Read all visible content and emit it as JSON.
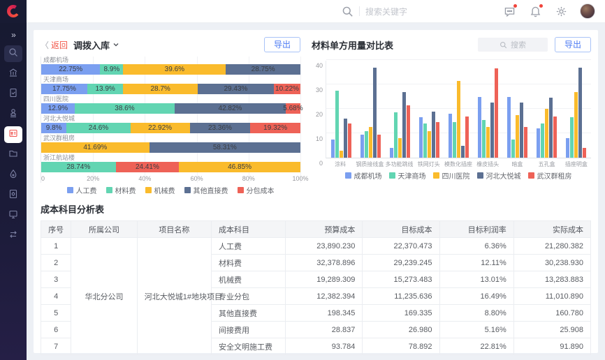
{
  "topbar": {
    "search_placeholder": "搜索关键字"
  },
  "sidebar": {
    "items": [
      {
        "name": "search",
        "style": "hl"
      },
      {
        "name": "bank",
        "style": ""
      },
      {
        "name": "document-check",
        "style": ""
      },
      {
        "name": "stamp",
        "style": ""
      },
      {
        "name": "id-card",
        "style": "active"
      },
      {
        "name": "folder",
        "style": ""
      },
      {
        "name": "droplet",
        "style": ""
      },
      {
        "name": "document-gear",
        "style": ""
      },
      {
        "name": "monitor",
        "style": ""
      },
      {
        "name": "transfer",
        "style": ""
      }
    ],
    "expand_glyph": "»"
  },
  "left_chart": {
    "back_chevron": "〈",
    "back_label": "返回",
    "title": "调拨入库",
    "export_label": "导出"
  },
  "right_chart": {
    "title": "材料单方用量对比表",
    "search_placeholder": "搜索",
    "export_label": "导出"
  },
  "colors": {
    "blue": "#7B9FF0",
    "green": "#62D5B2",
    "orange": "#FABB2C",
    "slate": "#5C7092",
    "red": "#EE6257",
    "accent_blue": "#4D7BF3",
    "accent_red": "#F25749"
  },
  "chart_data": [
    {
      "type": "bar",
      "orientation": "horizontal-stacked",
      "title": "调拨入库",
      "xlim": [
        0,
        100
      ],
      "x_ticks": [
        "0",
        "20%",
        "40%",
        "60%",
        "80%",
        "100%"
      ],
      "grid": true,
      "legend_position": "bottom",
      "legend": [
        {
          "label": "人工费",
          "color": "#7B9FF0"
        },
        {
          "label": "材料费",
          "color": "#62D5B2"
        },
        {
          "label": "机械费",
          "color": "#FABB2C"
        },
        {
          "label": "其他直接费",
          "color": "#5C7092"
        },
        {
          "label": "分包成本",
          "color": "#EE6257"
        }
      ],
      "bars": [
        {
          "category": "成都机场",
          "segments": [
            {
              "series": "人工费",
              "value": 22.75
            },
            {
              "series": "材料费",
              "value": 8.9
            },
            {
              "series": "机械费",
              "value": 39.6
            },
            {
              "series": "其他直接费",
              "value": 28.75
            }
          ]
        },
        {
          "category": "天津商场",
          "segments": [
            {
              "series": "人工费",
              "value": 17.75
            },
            {
              "series": "材料费",
              "value": 13.9
            },
            {
              "series": "机械费",
              "value": 28.7
            },
            {
              "series": "其他直接费",
              "value": 29.43
            },
            {
              "series": "分包成本",
              "value": 10.22
            }
          ]
        },
        {
          "category": "四川医院",
          "segments": [
            {
              "series": "人工费",
              "value": 12.9
            },
            {
              "series": "材料费",
              "value": 38.6
            },
            {
              "series": "其他直接费",
              "value": 42.82
            },
            {
              "series": "分包成本",
              "value": 5.68
            }
          ]
        },
        {
          "category": "河北大悦城",
          "segments": [
            {
              "series": "人工费",
              "value": 9.8
            },
            {
              "series": "材料费",
              "value": 24.6
            },
            {
              "series": "机械费",
              "value": 22.92
            },
            {
              "series": "其他直接费",
              "value": 23.36
            },
            {
              "series": "分包成本",
              "value": 19.32
            }
          ]
        },
        {
          "category": "武汉群租房",
          "segments": [
            {
              "series": "机械费",
              "value": 41.69
            },
            {
              "series": "其他直接费",
              "value": 58.31
            }
          ]
        },
        {
          "category": "浙江航站楼",
          "segments": [
            {
              "series": "材料费",
              "value": 28.74
            },
            {
              "series": "分包成本",
              "value": 24.41
            },
            {
              "series": "机械费",
              "value": 46.85
            }
          ]
        }
      ]
    },
    {
      "type": "bar",
      "orientation": "vertical-grouped",
      "title": "材料单方用量对比表",
      "categories": [
        "涂料",
        "钢质接线盒",
        "多功能跳线",
        "铁网灯头",
        "模数化插座",
        "橡皮插头",
        "暗盒",
        "五孔盒",
        "插座明盒"
      ],
      "ylim": [
        0,
        40
      ],
      "y_ticks": [
        0,
        10,
        20,
        30,
        40
      ],
      "grid": true,
      "legend_position": "bottom",
      "series": [
        {
          "name": "成都机场",
          "color": "#7B9FF0",
          "values": [
            7.5,
            9.5,
            4,
            16.5,
            18,
            25,
            25,
            12,
            8
          ]
        },
        {
          "name": "天津商场",
          "color": "#62D5B2",
          "values": [
            27.5,
            11,
            18.5,
            14,
            14.5,
            15.5,
            7.5,
            14,
            16.5
          ]
        },
        {
          "name": "四川医院",
          "color": "#FABB2C",
          "values": [
            3,
            12.5,
            8,
            11,
            31.5,
            12.5,
            17.5,
            20,
            27
          ]
        },
        {
          "name": "河北大悦城",
          "color": "#5C7092",
          "values": [
            16,
            37,
            27,
            19,
            5,
            22.5,
            22.5,
            24.5,
            37
          ]
        },
        {
          "name": "武汉群租房",
          "color": "#EE6257",
          "values": [
            14,
            9.5,
            21.5,
            14.5,
            17,
            36.5,
            12.5,
            17,
            4
          ]
        }
      ]
    }
  ],
  "table": {
    "title": "成本科目分析表",
    "headers": [
      "序号",
      "所属公司",
      "项目名称",
      "成本科目",
      "预算成本",
      "目标成本",
      "目标利润率",
      "实际成本"
    ],
    "company": "华北分公司",
    "project": "河北大悦城1#地块项目",
    "rows": [
      {
        "no": "1",
        "subject": "人工费",
        "budget": "23,890.230",
        "target": "22,370.473",
        "margin": "6.36%",
        "actual": "21,280.382"
      },
      {
        "no": "2",
        "subject": "材料费",
        "budget": "32,378.896",
        "target": "29,239.245",
        "margin": "12.11%",
        "actual": "30,238.930"
      },
      {
        "no": "3",
        "subject": "机械费",
        "budget": "19,289.309",
        "target": "15,273.483",
        "margin": "13.01%",
        "actual": "13,283.883"
      },
      {
        "no": "4",
        "subject": "专业分包",
        "budget": "12,382.394",
        "target": "11,235.636",
        "margin": "16.49%",
        "actual": "11,010.890"
      },
      {
        "no": "5",
        "subject": "其他直接费",
        "budget": "198.345",
        "target": "169.335",
        "margin": "8.80%",
        "actual": "160.780"
      },
      {
        "no": "6",
        "subject": "间接费用",
        "budget": "28.837",
        "target": "26.980",
        "margin": "5.16%",
        "actual": "25.908"
      },
      {
        "no": "7",
        "subject": "安全文明施工费",
        "budget": "93.784",
        "target": "78.892",
        "margin": "22.81%",
        "actual": "91.890"
      }
    ]
  }
}
